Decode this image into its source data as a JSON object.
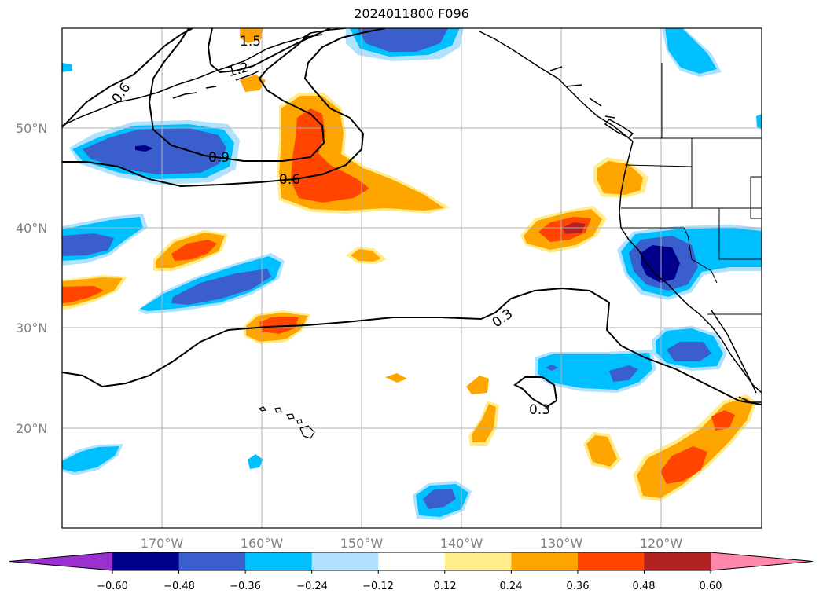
{
  "title": "2024011800 F096",
  "map": {
    "projection": "PlateCarree",
    "lon_range": [
      -180,
      -110
    ],
    "lat_range": [
      10,
      60
    ],
    "gridlines": true,
    "lat_labels": [
      "20°N",
      "30°N",
      "40°N",
      "50°N"
    ],
    "lon_labels": [
      "170°W",
      "160°W",
      "150°W",
      "140°W",
      "130°W",
      "120°W"
    ]
  },
  "colorbar": {
    "orientation": "horizontal",
    "extend": "both",
    "tick_labels": [
      "−0.60",
      "−0.48",
      "−0.36",
      "−0.24",
      "−0.12",
      "0.12",
      "0.24",
      "0.36",
      "0.48",
      "0.60"
    ],
    "colors": [
      "#9b30d0",
      "#00008b",
      "#3a5fcd",
      "#00bfff",
      "#b0e2ff",
      "#ffffff",
      "#ffec8b",
      "#ffa500",
      "#ff4500",
      "#b22222",
      "#ff88aa"
    ]
  },
  "contour_labels": [
    "1.5",
    "1.2",
    "0.6",
    "0.9",
    "0.6",
    "0.3",
    "0.3"
  ]
}
